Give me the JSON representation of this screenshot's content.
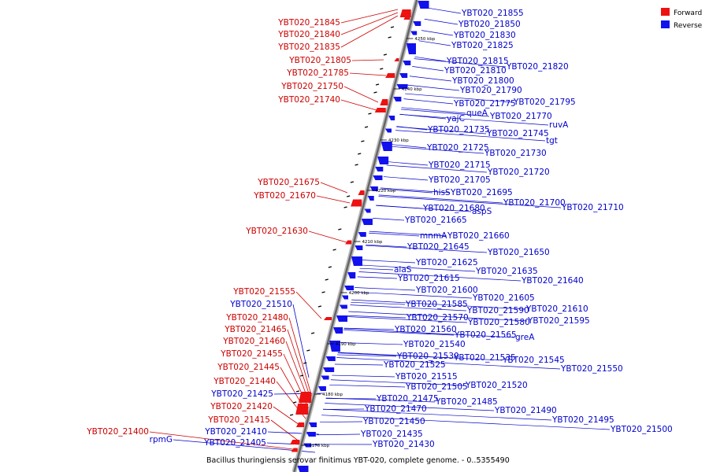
{
  "caption": "Bacillus thuringiensis serovar finitimus YBT-020, complete genome. - 0..5355490",
  "legend": [
    {
      "label": "Forward",
      "color": "#ee1111"
    },
    {
      "label": "Reverse",
      "color": "#1111ee"
    }
  ],
  "colors": {
    "forward": "#ee1111",
    "reverse": "#1111ee",
    "forward_text": "#cc0000",
    "reverse_text": "#0000cc",
    "backbone": "#888888"
  },
  "ticks": [
    "4170 kbp",
    "4180 kbp",
    "4190 kbp",
    "4200 kbp",
    "4210 kbp",
    "4220 kbp",
    "4230 kbp",
    "4240 kbp",
    "4250 kbp"
  ],
  "forward_labels": [
    "YBT020_21845",
    "YBT020_21840",
    "YBT020_21835",
    "YBT020_21805",
    "YBT020_21785",
    "YBT020_21750",
    "YBT020_21740",
    "YBT020_21675",
    "YBT020_21670",
    "YBT020_21630",
    "YBT020_21555",
    "YBT020_21480",
    "YBT020_21465",
    "YBT020_21460",
    "YBT020_21455",
    "YBT020_21445",
    "YBT020_21440",
    "YBT020_21420",
    "YBT020_21415",
    "YBT020_21400"
  ],
  "reverse_left_labels": [
    "YBT020_21510",
    "YBT020_21425",
    "YBT020_21410",
    "YBT020_21405",
    "rpmG"
  ],
  "reverse_labels": [
    "YBT020_21855",
    "YBT020_21850",
    "YBT020_21830",
    "YBT020_21825",
    "YBT020_21815",
    "YBT020_21820",
    "YBT020_21810",
    "YBT020_21800",
    "YBT020_21790",
    "YBT020_21775",
    "YBT020_21795",
    "queA",
    "yajC",
    "YBT020_21770",
    "ruvA",
    "YBT020_21735",
    "YBT020_21745",
    "tgt",
    "YBT020_21725",
    "YBT020_21730",
    "YBT020_21715",
    "YBT020_21720",
    "YBT020_21705",
    "hisS",
    "YBT020_21695",
    "YBT020_21700",
    "YBT020_21710",
    "YBT020_21680",
    "aspS",
    "YBT020_21665",
    "mnmA",
    "YBT020_21660",
    "YBT020_21645",
    "YBT020_21650",
    "YBT020_21625",
    "alaS",
    "YBT020_21635",
    "YBT020_21615",
    "YBT020_21640",
    "YBT020_21600",
    "YBT020_21605",
    "YBT020_21585",
    "YBT020_21590",
    "YBT020_21610",
    "YBT020_21570",
    "YBT020_21580",
    "YBT020_21595",
    "YBT020_21560",
    "YBT020_21565",
    "greA",
    "YBT020_21540",
    "YBT020_21530",
    "YBT020_21535",
    "YBT020_21545",
    "YBT020_21525",
    "YBT020_21550",
    "YBT020_21515",
    "YBT020_21505",
    "YBT020_21520",
    "YBT020_21475",
    "YBT020_21485",
    "YBT020_21470",
    "YBT020_21490",
    "YBT020_21495",
    "YBT020_21500",
    "YBT020_21450",
    "YBT020_21435",
    "YBT020_21430"
  ]
}
